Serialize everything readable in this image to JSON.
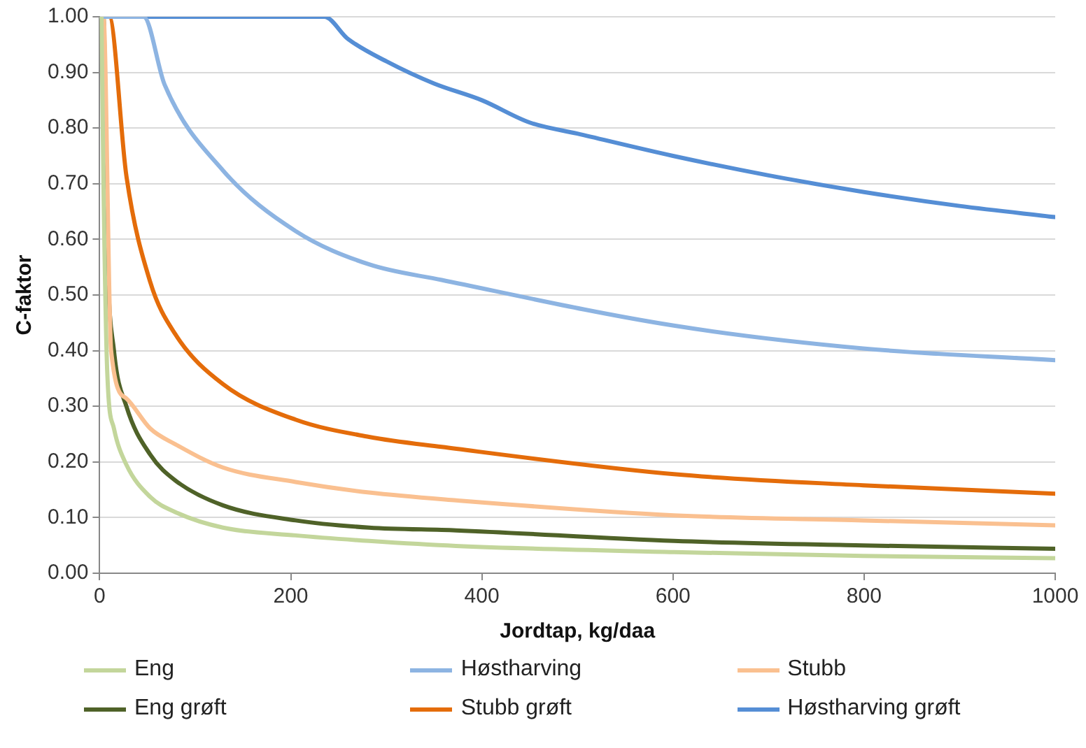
{
  "chart_data": {
    "type": "line",
    "xlabel": "Jordtap, kg/daa",
    "ylabel": "C-faktor",
    "xlim": [
      0,
      1000
    ],
    "xticks": [
      0,
      200,
      400,
      600,
      800,
      1000
    ],
    "ylim": [
      0,
      1
    ],
    "yticks": [
      {
        "value": 0,
        "label": "0.00"
      },
      {
        "value": 0.1,
        "label": "0.10"
      },
      {
        "value": 0.2,
        "label": "0.20"
      },
      {
        "value": 0.3,
        "label": "0.30"
      },
      {
        "value": 0.4,
        "label": "0.40"
      },
      {
        "value": 0.5,
        "label": "0.50"
      },
      {
        "value": 0.6,
        "label": "0.60"
      },
      {
        "value": 0.7,
        "label": "0.70"
      },
      {
        "value": 0.8,
        "label": "0.80"
      },
      {
        "value": 0.9,
        "label": "0.90"
      },
      {
        "value": 1,
        "label": "1.00"
      }
    ],
    "grid": "y",
    "legend": "bottom",
    "marker": "none",
    "line_style": "solid",
    "series": [
      {
        "name": "Eng",
        "color": "#c3d69b",
        "x": [
          2,
          4,
          8,
          15,
          28,
          53,
          79,
          129,
          205,
          282,
          373,
          601,
          799,
          1000
        ],
        "values": [
          1,
          0.7,
          0.36,
          0.26,
          0.195,
          0.137,
          0.11,
          0.082,
          0.068,
          0.058,
          0.049,
          0.038,
          0.031,
          0.027
        ]
      },
      {
        "name": "Høstharving",
        "color": "#8db4e2",
        "x": [
          0,
          46,
          68,
          129,
          205,
          282,
          358,
          601,
          799,
          1000
        ],
        "values": [
          1,
          1,
          0.878,
          0.724,
          0.615,
          0.555,
          0.527,
          0.445,
          0.404,
          0.383
        ]
      },
      {
        "name": "Stubb",
        "color": "#fac090",
        "x": [
          0,
          4,
          12,
          28,
          53,
          79,
          129,
          205,
          282,
          373,
          601,
          799,
          1000
        ],
        "values": [
          1,
          1,
          0.4,
          0.314,
          0.26,
          0.232,
          0.19,
          0.164,
          0.145,
          0.131,
          0.104,
          0.095,
          0.086
        ]
      },
      {
        "name": "Eng grøft",
        "color": "#4f6228",
        "x": [
          0,
          4,
          8,
          15,
          28,
          53,
          79,
          129,
          205,
          282,
          373,
          601,
          799,
          1000
        ],
        "values": [
          1,
          1,
          0.58,
          0.4,
          0.3,
          0.213,
          0.167,
          0.122,
          0.095,
          0.082,
          0.077,
          0.058,
          0.05,
          0.044
        ]
      },
      {
        "name": "Stubb grøft",
        "color": "#e46c0a",
        "x": [
          0,
          10,
          28,
          53,
          79,
          129,
          205,
          282,
          358,
          601,
          799,
          1000
        ],
        "values": [
          1,
          1,
          0.714,
          0.523,
          0.43,
          0.34,
          0.276,
          0.245,
          0.227,
          0.178,
          0.158,
          0.143
        ]
      },
      {
        "name": "Høstharving grøft",
        "color": "#558ed5",
        "x": [
          0,
          235,
          260,
          300,
          350,
          400,
          450,
          500,
          600,
          700,
          800,
          900,
          1000
        ],
        "values": [
          1,
          1,
          0.96,
          0.92,
          0.88,
          0.85,
          0.81,
          0.79,
          0.75,
          0.715,
          0.685,
          0.66,
          0.64
        ]
      }
    ]
  }
}
